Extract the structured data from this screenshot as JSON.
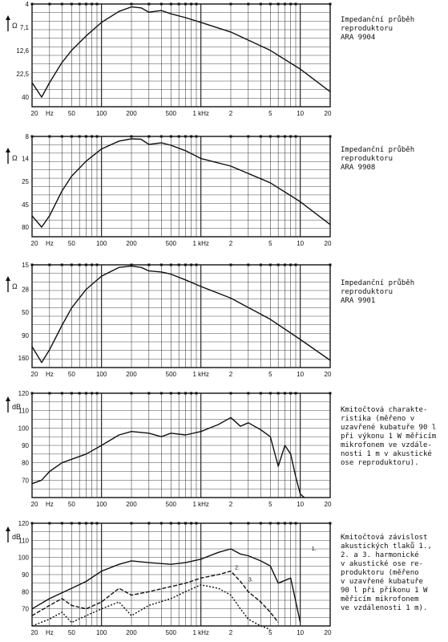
{
  "captions": [
    "Impedanční průběh\nreproduktoru\nARA 9904",
    "Impedanční průběh\nreproduktoru\nARA 9908",
    "Impedanční průběh\nreproduktoru\nARA 9901",
    "Kmitočtová charakte-\nristika (měřeno v\nuzavřené kubatuře 90 l\npři výkonu 1 W měřicím\nmikrofonem ve vzdále-\nnosti 1 m v akustické\nose reproduktoru).",
    "Kmitočtová závislost\nakustických tlaků 1.,\n2. a 3. harmonické\nv akustické ose re-\nproduktoru (měřeno\nv uzavřené kubatuře\n90 l při příkonu 1 W\nměřicím mikrofonem\nve vzdálenosti 1 m)."
  ],
  "chart_data": [
    {
      "type": "line",
      "xlabel": "Hz",
      "ylabel": "Ω",
      "x_scale": "log",
      "xlim": [
        20,
        20000
      ],
      "x_ticks": [
        "20",
        "Hz",
        "50",
        "100",
        "200",
        "500",
        "1 kHz",
        "2",
        "5",
        "10",
        "20"
      ],
      "y_ticks": [
        "4",
        "7,1",
        "12,6",
        "22,5",
        "40"
      ],
      "series": [
        {
          "x": [
            20,
            25,
            30,
            40,
            50,
            70,
            100,
            150,
            200,
            250,
            300,
            400,
            500,
            700,
            1000,
            2000,
            5000,
            10000,
            20000
          ],
          "y": [
            28,
            40,
            28,
            17,
            12.6,
            8.8,
            6.3,
            4.8,
            4.3,
            4.4,
            4.9,
            4.7,
            5.1,
            5.6,
            6.3,
            8.0,
            12.6,
            20,
            35
          ]
        }
      ]
    },
    {
      "type": "line",
      "xlabel": "Hz",
      "ylabel": "Ω",
      "x_scale": "log",
      "xlim": [
        20,
        20000
      ],
      "x_ticks": [
        "20",
        "Hz",
        "50",
        "100",
        "200",
        "500",
        "1 kHz",
        "2",
        "5",
        "10",
        "20"
      ],
      "y_ticks": [
        "8",
        "14",
        "25",
        "45",
        "80"
      ],
      "series": [
        {
          "x": [
            20,
            25,
            30,
            40,
            50,
            70,
            100,
            150,
            200,
            250,
            300,
            400,
            500,
            700,
            1000,
            2000,
            5000,
            10000,
            20000
          ],
          "y": [
            60,
            80,
            60,
            32,
            22,
            15,
            11,
            9,
            8.5,
            8.6,
            9.8,
            9.4,
            10,
            11.5,
            14,
            17,
            26,
            42,
            75
          ]
        }
      ]
    },
    {
      "type": "line",
      "xlabel": "Hz",
      "ylabel": "Ω",
      "x_scale": "log",
      "xlim": [
        20,
        20000
      ],
      "x_ticks": [
        "20",
        "Hz",
        "50",
        "100",
        "200",
        "500",
        "1 kHz",
        "2",
        "5",
        "10",
        "20"
      ],
      "y_ticks": [
        "15",
        "28",
        "50",
        "90",
        "160"
      ],
      "series": [
        {
          "x": [
            20,
            25,
            30,
            40,
            50,
            70,
            100,
            150,
            200,
            250,
            300,
            400,
            500,
            700,
            1000,
            2000,
            5000,
            10000,
            20000
          ],
          "y": [
            120,
            180,
            130,
            70,
            45,
            28,
            20,
            16,
            15.5,
            16,
            17.5,
            18,
            19,
            22,
            26,
            35,
            60,
            100,
            170
          ]
        }
      ]
    },
    {
      "type": "line",
      "xlabel": "Hz",
      "ylabel": "dB",
      "x_scale": "log",
      "xlim": [
        20,
        20000
      ],
      "ylim": [
        60,
        120
      ],
      "x_ticks": [
        "20",
        "Hz",
        "50",
        "100",
        "200",
        "500",
        "1 kHz",
        "2",
        "5",
        "10",
        "20"
      ],
      "y_ticks": [
        "120",
        "110",
        "100",
        "90",
        "80",
        "70"
      ],
      "series": [
        {
          "x": [
            20,
            25,
            30,
            40,
            50,
            70,
            100,
            150,
            200,
            300,
            400,
            500,
            700,
            1000,
            1500,
            2000,
            2500,
            3000,
            4000,
            5000,
            6000,
            7000,
            8000,
            9000,
            10000,
            11000
          ],
          "y": [
            68,
            70,
            75,
            80,
            82,
            85,
            90,
            96,
            98,
            97,
            95,
            97,
            96,
            98,
            102,
            106,
            101,
            103,
            99,
            95,
            78,
            90,
            85,
            72,
            62,
            60
          ]
        }
      ]
    },
    {
      "type": "line",
      "xlabel": "Hz",
      "ylabel": "dB",
      "x_scale": "log",
      "xlim": [
        20,
        20000
      ],
      "ylim": [
        60,
        120
      ],
      "x_ticks": [
        "20",
        "Hz",
        "50",
        "100",
        "200",
        "500",
        "1 kHz",
        "2",
        "5",
        "10",
        "20"
      ],
      "y_ticks": [
        "120",
        "110",
        "100",
        "90",
        "80",
        "70"
      ],
      "annotations": [
        "1.",
        "2.",
        "3."
      ],
      "series": [
        {
          "name": "1.",
          "x": [
            20,
            30,
            50,
            70,
            100,
            150,
            200,
            300,
            500,
            700,
            1000,
            1500,
            2000,
            2500,
            3000,
            4000,
            5000,
            6000,
            8000,
            10000
          ],
          "y": [
            70,
            76,
            82,
            86,
            92,
            96,
            98,
            97,
            96,
            97,
            99,
            103,
            105,
            102,
            101,
            98,
            95,
            85,
            88,
            62
          ]
        },
        {
          "name": "2.",
          "x": [
            20,
            30,
            40,
            50,
            70,
            100,
            150,
            200,
            300,
            500,
            700,
            1000,
            1500,
            2000,
            2500,
            3000,
            4000,
            5000,
            6000
          ],
          "y": [
            66,
            72,
            76,
            72,
            70,
            74,
            82,
            78,
            80,
            83,
            85,
            88,
            90,
            92,
            86,
            80,
            74,
            68,
            62
          ]
        },
        {
          "name": "3.",
          "x": [
            20,
            30,
            40,
            50,
            70,
            100,
            150,
            200,
            300,
            500,
            700,
            1000,
            1500,
            2000,
            2500,
            3000,
            4000,
            5000
          ],
          "y": [
            60,
            64,
            68,
            62,
            66,
            70,
            74,
            66,
            72,
            76,
            80,
            84,
            82,
            78,
            70,
            64,
            60,
            58
          ]
        }
      ]
    }
  ]
}
